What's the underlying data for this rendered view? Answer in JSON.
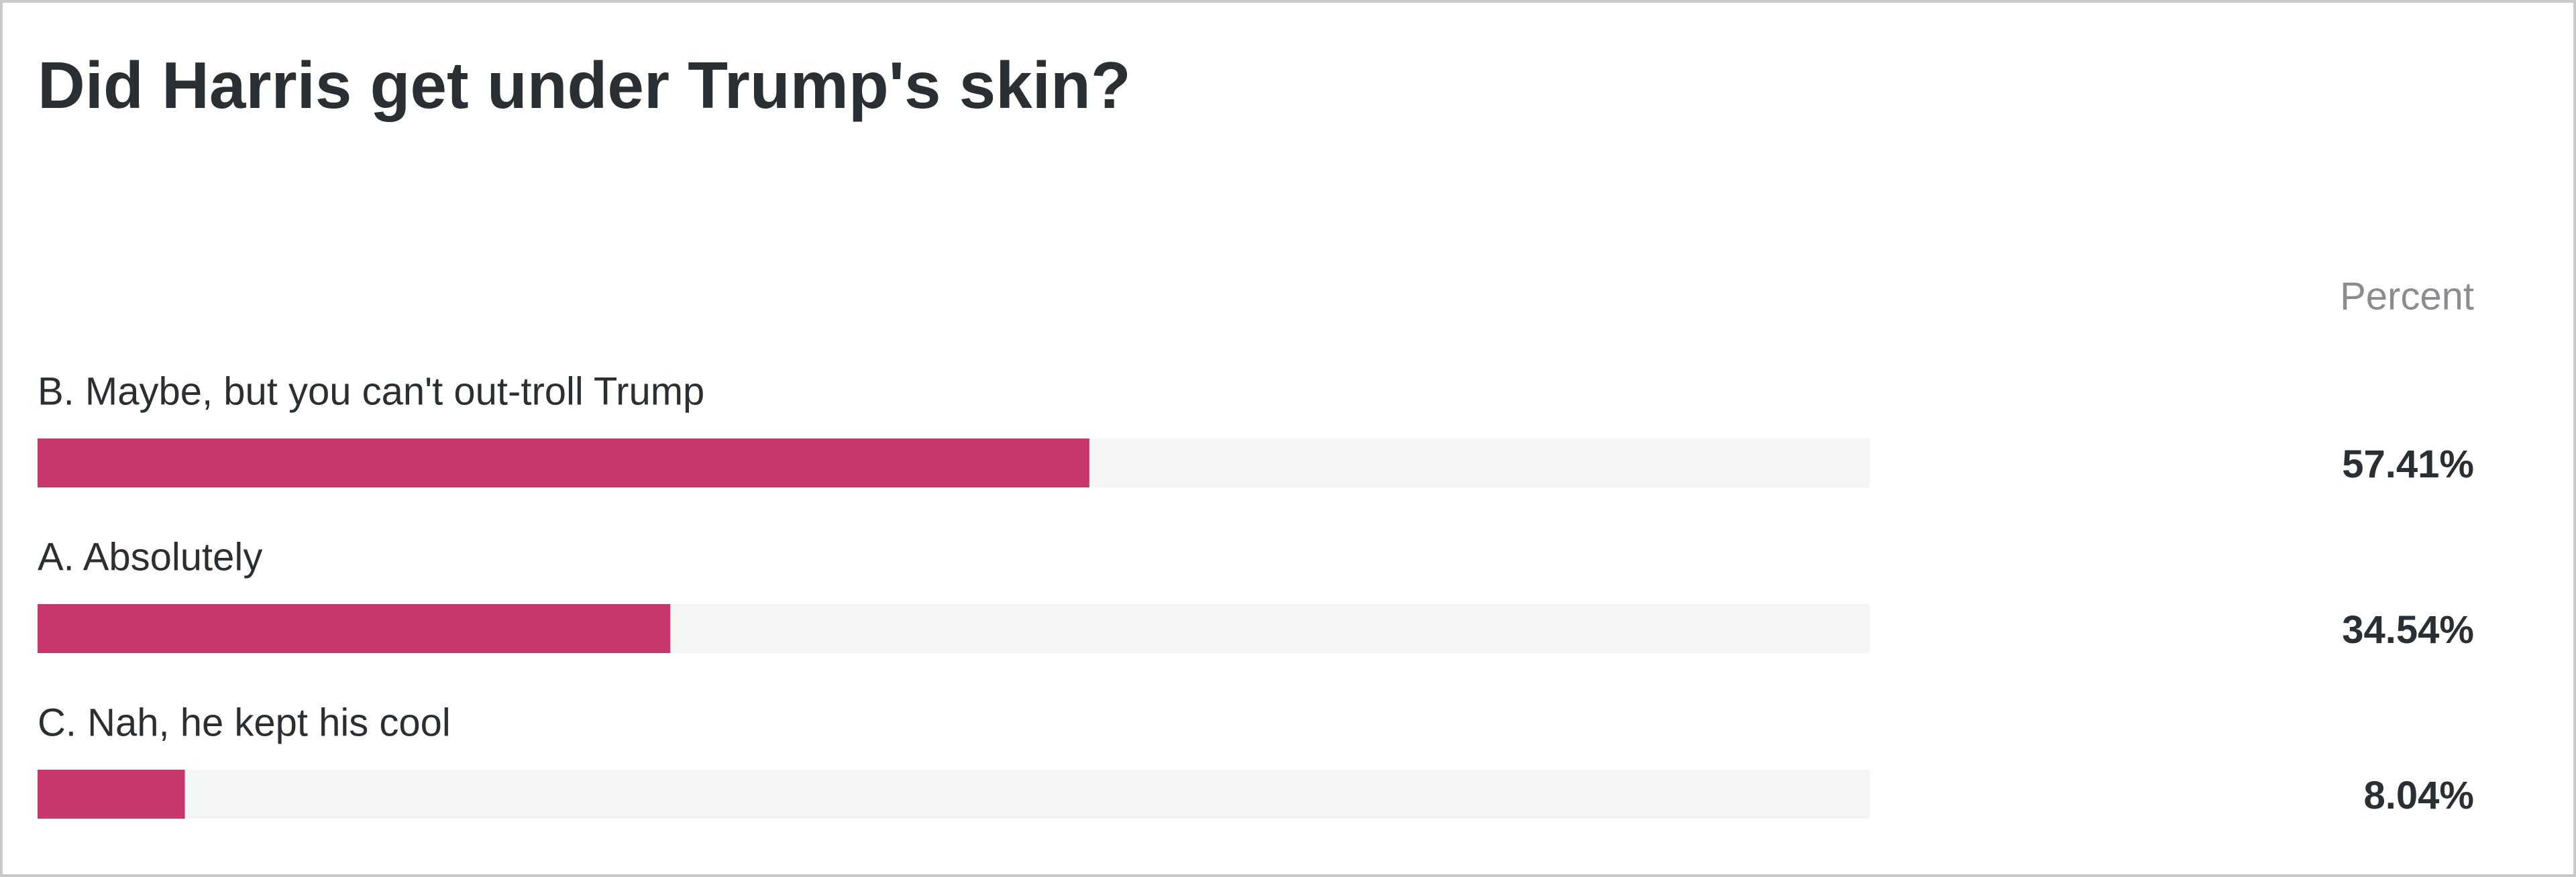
{
  "chart_data": {
    "type": "bar",
    "title": "Did Harris get under Trump's skin?",
    "value_column_title": "Percent",
    "categories": [
      "B. Maybe, but you can't out-troll Trump",
      "A. Absolutely",
      "C. Nah, he kept his cool"
    ],
    "values": [
      57.41,
      34.54,
      8.04
    ],
    "value_labels": [
      "57.41%",
      "34.54%",
      "8.04%"
    ],
    "color": "#c8366b",
    "xlim": [
      0,
      100
    ]
  }
}
